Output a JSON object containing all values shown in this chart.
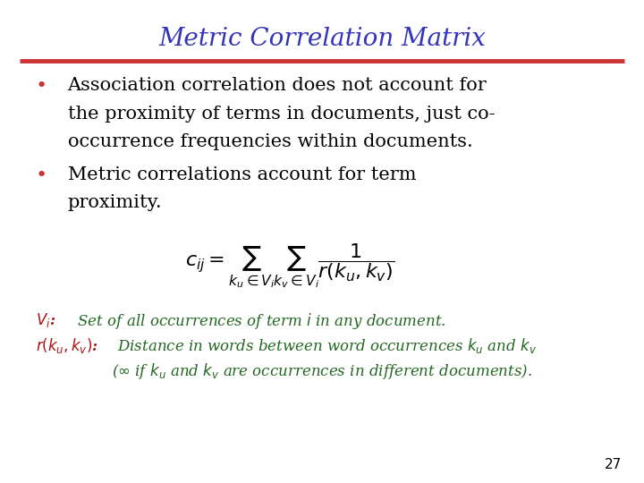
{
  "title": "Metric Correlation Matrix",
  "title_color": "#3333bb",
  "title_fontsize": 20,
  "bg_color": "#ffffff",
  "divider_color": "#cc3333",
  "bullet1_line1": "Association correlation does not account for",
  "bullet1_line2": "the proximity of terms in documents, just co-",
  "bullet1_line3": "occurrence frequencies within documents.",
  "bullet2_line1": "Metric correlations account for term",
  "bullet2_line2": "proximity.",
  "formula": "$c_{ij} = \\sum_{k_u \\in V_i}\\sum_{k_v \\in V_i} \\dfrac{1}{r(k_u, k_v)}$",
  "note1_red": "$V_i$:",
  "note1_green": "  Set of all occurrences of term $i$ in any document.",
  "note2_red": "$r(k_u,k_v)$:",
  "note2_green": " Distance in words between word occurrences $k_u$ and $k_v$",
  "note3": "($\\infty$ if $k_u$ and $k_v$ are occurrences in different documents).",
  "note_red": "#aa1111",
  "note_green": "#226622",
  "page_number": "27",
  "bullet_color": "#cc3333",
  "bullet_text_color": "#000000",
  "text_fontsize": 15,
  "note_fontsize": 12
}
